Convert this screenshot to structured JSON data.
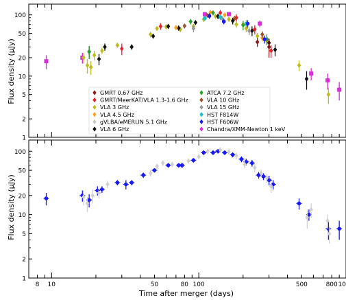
{
  "chart_data": [
    {
      "type": "scatter",
      "panel": "top",
      "xlabel": "",
      "ylabel": "Flux density (μJy)",
      "xscale": "log",
      "yscale": "log",
      "xlim": [
        7,
        1000
      ],
      "ylim": [
        1,
        150
      ],
      "yticks": [
        {
          "value": 1,
          "label": "1"
        },
        {
          "value": 2,
          "label": "2"
        },
        {
          "value": 5,
          "label": "5"
        },
        {
          "value": 10,
          "label": "10"
        },
        {
          "value": 20,
          "label": "20"
        },
        {
          "value": 50,
          "label": "50"
        },
        {
          "value": 100,
          "label": "100"
        }
      ],
      "legend": {
        "placement": "lower-center",
        "columns": 2,
        "entries": [
          {
            "label": "GMRT 0.67 GHz",
            "color": "#8b1a1a"
          },
          {
            "label": "GMRT/MeerKAT/VLA 1.3-1.6 GHz",
            "color": "#e8202a"
          },
          {
            "label": "VLA 3 GHz",
            "color": "#bcbc1f"
          },
          {
            "label": "VLA 4.5 GHz",
            "color": "#ff9f1c"
          },
          {
            "label": "gVLBA/eMERLIN 5.1 GHz",
            "color": "#c8c8c8"
          },
          {
            "label": "VLA 6 GHz",
            "color": "#111111"
          },
          {
            "label": "ATCA 7.2 GHz",
            "color": "#2ca02c"
          },
          {
            "label": "VLA 10 GHz",
            "color": "#a0522d"
          },
          {
            "label": "VLA 15 GHz",
            "color": "#999999"
          },
          {
            "label": "HST F814W",
            "color": "#17becf"
          },
          {
            "label": "HST F606W",
            "color": "#1a1aee"
          },
          {
            "label": "Chandra/XMM-Newton 1 keV",
            "color": "#d62fd6"
          }
        ]
      },
      "series": [
        {
          "key": "chandra",
          "color": "#d62fd6",
          "marker": "square",
          "points": [
            [
              9.2,
              17.5,
              4.5
            ],
            [
              16.2,
              20,
              4
            ],
            [
              110,
              102,
              10
            ],
            [
              160,
              103,
              8
            ],
            [
              260,
              72,
              9
            ],
            [
              580,
              11,
              2.5
            ],
            [
              750,
              8.5,
              2.5
            ],
            [
              900,
              6,
              2
            ]
          ]
        },
        {
          "key": "vla3",
          "color": "#bcbc1f",
          "marker": "diamond",
          "points": [
            [
              16.5,
              20,
              4
            ],
            [
              17.5,
              15,
              4
            ],
            [
              18.5,
              14,
              3.5
            ],
            [
              19.5,
              22,
              4
            ],
            [
              22,
              26,
              3
            ],
            [
              28,
              32,
              3
            ],
            [
              47,
              48,
              5
            ],
            [
              52,
              60,
              5
            ],
            [
              60,
              64,
              6
            ],
            [
              75,
              58,
              6
            ],
            [
              92,
              65,
              6
            ],
            [
              108,
              85,
              8
            ],
            [
              130,
              95,
              8
            ],
            [
              160,
              85,
              8
            ],
            [
              180,
              70,
              8
            ],
            [
              210,
              60,
              8
            ],
            [
              250,
              45,
              6
            ],
            [
              290,
              38,
              6
            ],
            [
              480,
              15,
              3
            ],
            [
              760,
              5,
              1.5
            ]
          ]
        },
        {
          "key": "vla6",
          "color": "#111111",
          "marker": "diamond",
          "points": [
            [
              18,
              25,
              6
            ],
            [
              21,
              19,
              4
            ],
            [
              23,
              30,
              4
            ],
            [
              35,
              30,
              3
            ],
            [
              49,
              45,
              4
            ],
            [
              62,
              65,
              6
            ],
            [
              73,
              61,
              6
            ],
            [
              95,
              75,
              6
            ],
            [
              135,
              95,
              10
            ],
            [
              170,
              80,
              10
            ],
            [
              230,
              55,
              10
            ],
            [
              300,
              35,
              6
            ],
            [
              330,
              27,
              6
            ],
            [
              540,
              9,
              3
            ]
          ]
        },
        {
          "key": "gmrt067",
          "color": "#8b1a1a",
          "marker": "diamond",
          "points": [
            [
              250,
              36,
              6
            ],
            [
              300,
              30,
              10
            ]
          ]
        },
        {
          "key": "gmrt13",
          "color": "#e8202a",
          "marker": "diamond",
          "points": [
            [
              30,
              28,
              6
            ],
            [
              55,
              65,
              8
            ],
            [
              140,
              108,
              12
            ],
            [
              180,
              90,
              12
            ],
            [
              240,
              58,
              10
            ],
            [
              310,
              26,
              6
            ]
          ]
        },
        {
          "key": "vla45",
          "color": "#ff9f1c",
          "marker": "diamond",
          "points": [
            [
              70,
              62,
              5
            ],
            [
              120,
              110,
              8
            ],
            [
              150,
              100,
              8
            ],
            [
              200,
              70,
              8
            ],
            [
              270,
              42,
              5
            ]
          ]
        },
        {
          "key": "vla10",
          "color": "#a0522d",
          "marker": "diamond",
          "points": [
            [
              80,
              66,
              6
            ],
            [
              115,
              98,
              8
            ],
            [
              175,
              88,
              8
            ],
            [
              270,
              48,
              6
            ]
          ]
        },
        {
          "key": "atca",
          "color": "#2ca02c",
          "marker": "diamond",
          "points": [
            [
              18,
              25,
              6
            ],
            [
              88,
              78,
              8
            ],
            [
              125,
              108,
              10
            ],
            [
              200,
              68,
              12
            ],
            [
              290,
              40,
              8
            ]
          ]
        },
        {
          "key": "vla15",
          "color": "#999999",
          "marker": "diamond",
          "points": [
            [
              92,
              60,
              8
            ],
            [
              145,
              86,
              10
            ],
            [
              220,
              55,
              8
            ]
          ]
        },
        {
          "key": "hst814",
          "color": "#17becf",
          "marker": "circle",
          "points": [
            [
              110,
              88,
              8
            ],
            [
              140,
              92,
              10
            ],
            [
              210,
              72,
              10
            ]
          ]
        },
        {
          "key": "hst606",
          "color": "#1a1aee",
          "marker": "circle",
          "points": [
            [
              118,
              96,
              10
            ],
            [
              148,
              78,
              8
            ],
            [
              215,
              72,
              10
            ],
            [
              280,
              40,
              6
            ]
          ]
        }
      ]
    },
    {
      "type": "scatter",
      "panel": "bottom",
      "xlabel": "Time after merger (days)",
      "ylabel": "Flux density (μJy)",
      "xscale": "log",
      "yscale": "log",
      "xlim": [
        7,
        1000
      ],
      "ylim": [
        1,
        150
      ],
      "xticks": [
        {
          "value": 8,
          "label": "8"
        },
        {
          "value": 10,
          "label": "10"
        },
        {
          "value": 50,
          "label": "50"
        },
        {
          "value": 80,
          "label": "80"
        },
        {
          "value": 100,
          "label": "100"
        },
        {
          "value": 500,
          "label": "500"
        },
        {
          "value": 800,
          "label": "800"
        },
        {
          "value": 1000,
          "label": "1000"
        }
      ],
      "yticks": [
        {
          "value": 1,
          "label": "1"
        },
        {
          "value": 2,
          "label": "2"
        },
        {
          "value": 5,
          "label": "5"
        },
        {
          "value": 10,
          "label": "10"
        },
        {
          "value": 20,
          "label": "20"
        },
        {
          "value": 50,
          "label": "50"
        },
        {
          "value": 100,
          "label": "100"
        }
      ],
      "series": [
        {
          "key": "scaled",
          "color": "#1a1aee",
          "marker": "circle",
          "points": [
            [
              9.2,
              18,
              4
            ],
            [
              16.2,
              20,
              4
            ],
            [
              18,
              17,
              4
            ],
            [
              20.5,
              24,
              4
            ],
            [
              22,
              25,
              3
            ],
            [
              28,
              32,
              3
            ],
            [
              32,
              30,
              5
            ],
            [
              35,
              32,
              3
            ],
            [
              42,
              42,
              4
            ],
            [
              50,
              50,
              4
            ],
            [
              62,
              60,
              5
            ],
            [
              73,
              60,
              5
            ],
            [
              77,
              60,
              6
            ],
            [
              92,
              72,
              6
            ],
            [
              108,
              95,
              8
            ],
            [
              125,
              95,
              8
            ],
            [
              135,
              100,
              8
            ],
            [
              150,
              95,
              8
            ],
            [
              170,
              88,
              8
            ],
            [
              195,
              75,
              8
            ],
            [
              210,
              68,
              8
            ],
            [
              230,
              65,
              8
            ],
            [
              255,
              42,
              5
            ],
            [
              275,
              40,
              5
            ],
            [
              300,
              35,
              6
            ],
            [
              320,
              30,
              5
            ],
            [
              480,
              15,
              3
            ],
            [
              560,
              10,
              2
            ],
            [
              760,
              6,
              2
            ],
            [
              900,
              6,
              2
            ]
          ]
        },
        {
          "key": "others",
          "color": "#d0d0d0",
          "marker": "diamond",
          "points": [
            [
              16.5,
              19,
              5
            ],
            [
              17.5,
              15,
              4
            ],
            [
              19,
              20,
              5
            ],
            [
              21,
              22,
              4
            ],
            [
              24,
              30,
              4
            ],
            [
              47,
              45,
              5
            ],
            [
              52,
              58,
              5
            ],
            [
              57,
              65,
              6
            ],
            [
              66,
              62,
              6
            ],
            [
              85,
              70,
              6
            ],
            [
              100,
              82,
              8
            ],
            [
              115,
              100,
              10
            ],
            [
              140,
              105,
              10
            ],
            [
              160,
              98,
              10
            ],
            [
              180,
              85,
              10
            ],
            [
              205,
              62,
              8
            ],
            [
              240,
              55,
              8
            ],
            [
              265,
              45,
              6
            ],
            [
              290,
              38,
              6
            ],
            [
              310,
              28,
              6
            ],
            [
              545,
              9,
              3
            ],
            [
              580,
              12,
              3
            ],
            [
              750,
              8,
              2
            ],
            [
              770,
              5,
              1.5
            ]
          ]
        }
      ]
    }
  ]
}
